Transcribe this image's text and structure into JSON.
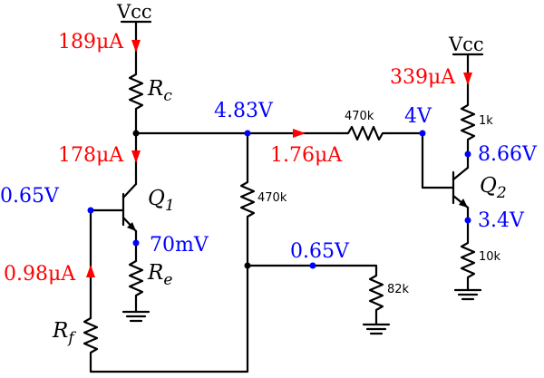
{
  "colors": {
    "current": "#ff0000",
    "voltage": "#0000ff",
    "wire": "#000000"
  },
  "supplies": {
    "vcc_left": "Vcc",
    "vcc_right": "Vcc"
  },
  "components": {
    "rc": "R",
    "rc_sub": "c",
    "re": "R",
    "re_sub": "e",
    "rf": "R",
    "rf_sub": "f",
    "q1": "Q",
    "q1_sub": "1",
    "q2": "Q",
    "q2_sub": "2",
    "r_470k_series": "470k",
    "r_470k_shunt": "470k",
    "r_82k": "82k",
    "r_1k": "1k",
    "r_10k": "10k"
  },
  "currents": {
    "rc": "189μA",
    "q1_collector": "178μA",
    "series_470k": "1.76μA",
    "rf": "0.98μA",
    "q2_collector": "339μA"
  },
  "voltages": {
    "q1_collector": "4.83V",
    "q1_base": "0.65V",
    "q1_emitter": "70mV",
    "divider_mid": "0.65V",
    "q2_base": "4V",
    "q2_collector": "8.66V",
    "q2_emitter": "3.4V"
  }
}
